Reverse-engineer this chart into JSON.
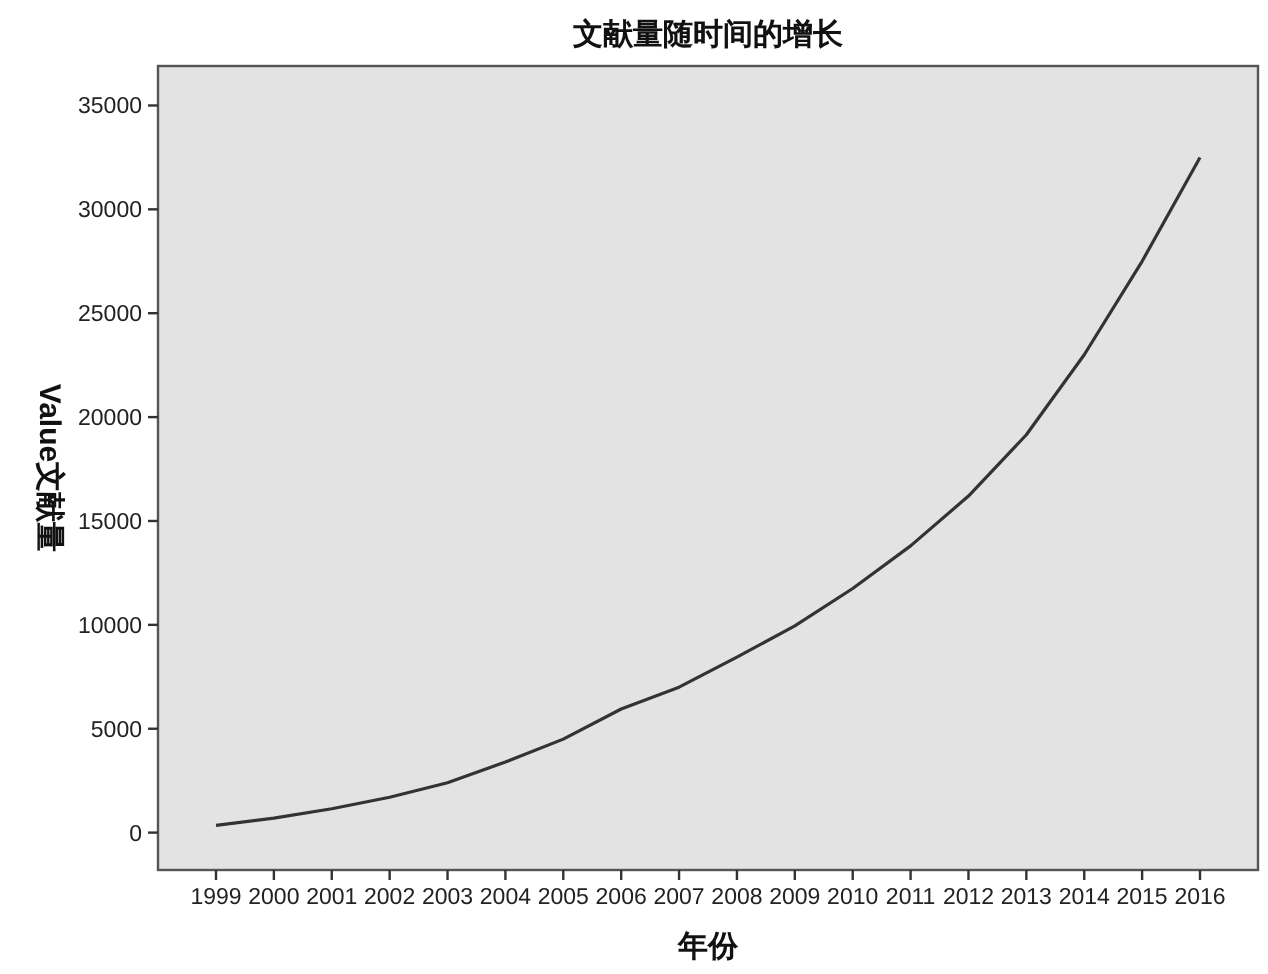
{
  "chart_data": {
    "type": "line",
    "title": "文献量随时间的增长",
    "xlabel": "年份",
    "ylabel": "Value文献量",
    "categories": [
      "1999",
      "2000",
      "2001",
      "2002",
      "2003",
      "2004",
      "2005",
      "2006",
      "2007",
      "2008",
      "2009",
      "2010",
      "2011",
      "2012",
      "2013",
      "2014",
      "2015",
      "2016"
    ],
    "series": [
      {
        "color": "#333333",
        "values": [
          350,
          700,
          1150,
          1700,
          2400,
          3400,
          4500,
          5950,
          7000,
          8450,
          9950,
          11750,
          13800,
          16200,
          19150,
          23000,
          27500,
          32500
        ]
      }
    ],
    "ylim": [
      -1800,
      36900
    ],
    "yticks": [
      0,
      5000,
      10000,
      15000,
      20000,
      25000,
      30000,
      35000
    ]
  }
}
